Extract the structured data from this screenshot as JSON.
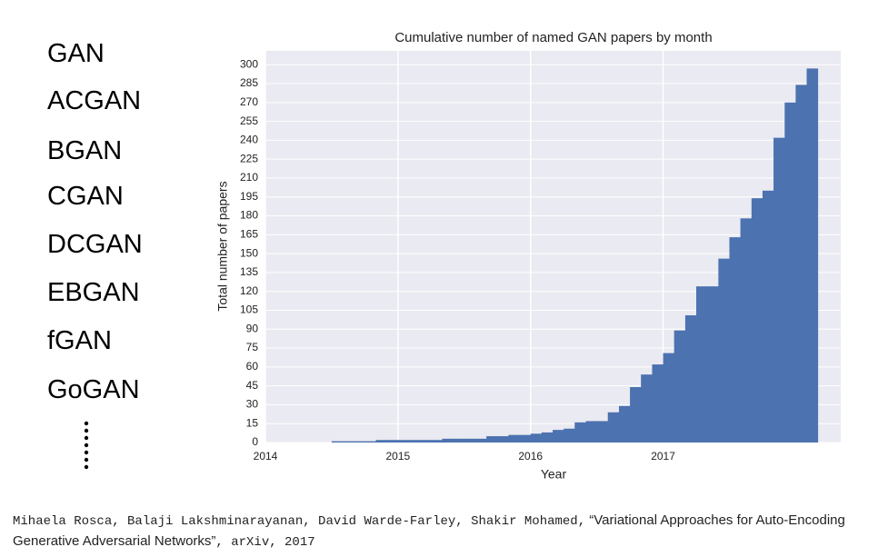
{
  "gan_list": [
    "GAN",
    "ACGAN",
    "BGAN",
    "CGAN",
    "DCGAN",
    "EBGAN",
    "fGAN",
    "GoGAN"
  ],
  "citation": {
    "authors": "Mihaela Rosca, Balaji Lakshminarayanan, David Warde-Farley, Shakir Mohamed,",
    "title": "“Variational Approaches for Auto-Encoding Generative Adversarial Networks”",
    "venue": ", arXiv, 2017"
  },
  "chart_data": {
    "type": "bar",
    "title": "Cumulative number of named GAN papers by month",
    "x_label": "Year",
    "y_label": "Total number of papers",
    "x": [
      2014.5,
      2014.583,
      2014.667,
      2014.75,
      2014.833,
      2014.917,
      2015,
      2015.083,
      2015.167,
      2015.25,
      2015.333,
      2015.417,
      2015.5,
      2015.583,
      2015.667,
      2015.75,
      2015.833,
      2015.917,
      2016,
      2016.083,
      2016.167,
      2016.25,
      2016.333,
      2016.417,
      2016.5,
      2016.583,
      2016.667,
      2016.75,
      2016.833,
      2016.917,
      2017,
      2017.083,
      2017.167,
      2017.25,
      2017.333,
      2017.417,
      2017.5,
      2017.583,
      2017.667,
      2017.75,
      2017.833,
      2017.917,
      2018,
      2018.083
    ],
    "values": [
      1,
      1,
      1,
      1,
      2,
      2,
      2,
      2,
      2,
      2,
      3,
      3,
      3,
      3,
      5,
      5,
      6,
      6,
      7,
      8,
      10,
      11,
      16,
      17,
      17,
      24,
      29,
      44,
      54,
      62,
      71,
      89,
      101,
      124,
      124,
      146,
      163,
      178,
      194,
      200,
      242,
      270,
      284,
      297
    ],
    "color": "#4c72b0",
    "background": "#eaeaf2",
    "grid": true,
    "xlim": [
      2014,
      2018.34
    ],
    "xticks": [
      2014,
      2015,
      2016,
      2017
    ],
    "ylim": [
      0,
      311
    ],
    "yticks": [
      0,
      15,
      30,
      45,
      60,
      75,
      90,
      105,
      120,
      135,
      150,
      165,
      180,
      195,
      210,
      225,
      240,
      255,
      270,
      285,
      300
    ]
  }
}
